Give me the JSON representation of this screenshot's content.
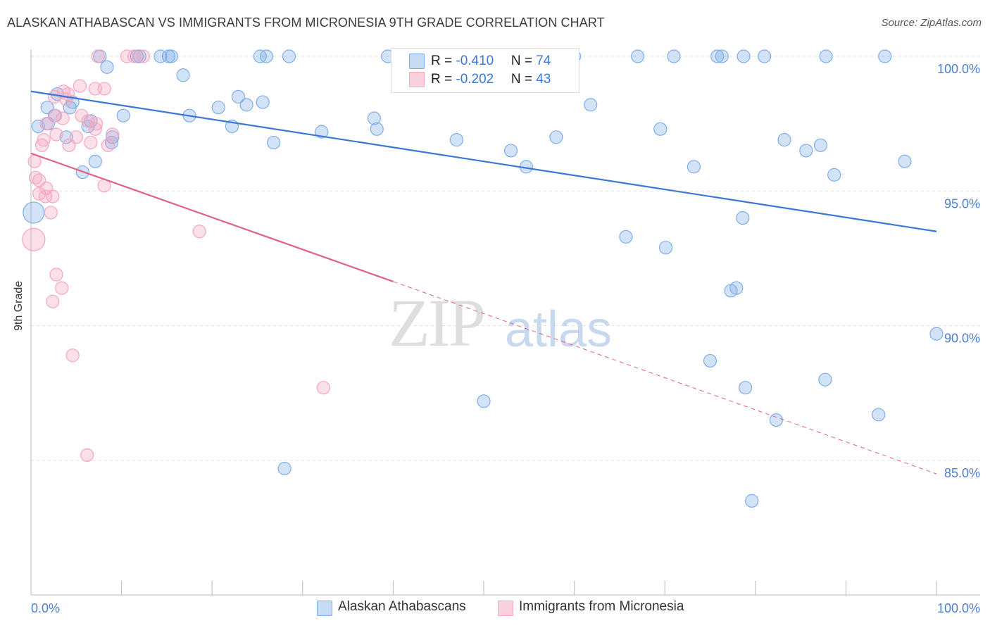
{
  "title": "ALASKAN ATHABASCAN VS IMMIGRANTS FROM MICRONESIA 9TH GRADE CORRELATION CHART",
  "source": "Source: ZipAtlas.com",
  "watermark": {
    "zip": "ZIP",
    "atlas": "atlas"
  },
  "legend_top": [
    {
      "r_label": "R = ",
      "r_value": "-0.410",
      "n_label": "N = ",
      "n_value": "74",
      "color": "#7faee8"
    },
    {
      "r_label": "R = ",
      "r_value": "-0.202",
      "n_label": "N = ",
      "n_value": "43",
      "color": "#f4a6c0"
    }
  ],
  "legend_bottom": [
    {
      "label": "Alaskan Athabascans",
      "color": "#7faee8"
    },
    {
      "label": "Immigrants from Micronesia",
      "color": "#f4a6c0"
    }
  ],
  "chart_data": {
    "type": "scatter",
    "title": "ALASKAN ATHABASCAN VS IMMIGRANTS FROM MICRONESIA 9TH GRADE CORRELATION CHART",
    "xlabel": "",
    "ylabel": "9th Grade",
    "xlim": [
      0,
      100
    ],
    "ylim": [
      80.5,
      101
    ],
    "x_tick_labels": [
      "0.0%",
      "100.0%"
    ],
    "y_ticks": [
      85,
      90,
      95,
      100
    ],
    "y_tick_labels": [
      "85.0%",
      "90.0%",
      "95.0%",
      "100.0%"
    ],
    "grid": "horizontal dashed",
    "legend": "top-center",
    "series": [
      {
        "name": "Alaskan Athabascans",
        "color": "#7faee8",
        "line_color": "#3a78d4",
        "trend": {
          "x": [
            0,
            100
          ],
          "y": [
            98.7,
            93.5
          ]
        },
        "points": [
          [
            1.8,
            98.1
          ],
          [
            0.8,
            97.4
          ],
          [
            2.6,
            97.8
          ],
          [
            1.9,
            97.5
          ],
          [
            2.9,
            98.6
          ],
          [
            4.3,
            98.1
          ],
          [
            4.6,
            98.3
          ],
          [
            6.3,
            97.4
          ],
          [
            6.6,
            97.6
          ],
          [
            3.9,
            97.0
          ],
          [
            9.0,
            97.0
          ],
          [
            8.9,
            96.8
          ],
          [
            8.4,
            99.6
          ],
          [
            7.6,
            100.0
          ],
          [
            11.7,
            100.0
          ],
          [
            12.0,
            100.0
          ],
          [
            14.3,
            100.0
          ],
          [
            15.2,
            100.0
          ],
          [
            15.5,
            100.0
          ],
          [
            25.3,
            100.0
          ],
          [
            26.0,
            100.0
          ],
          [
            28.5,
            100.0
          ],
          [
            39.4,
            100.0
          ],
          [
            41.1,
            100.0
          ],
          [
            60.0,
            100.0
          ],
          [
            67.0,
            100.0
          ],
          [
            71.0,
            100.0
          ],
          [
            75.8,
            100.0
          ],
          [
            76.3,
            100.0
          ],
          [
            78.7,
            100.0
          ],
          [
            81.0,
            100.0
          ],
          [
            87.8,
            100.0
          ],
          [
            94.3,
            100.0
          ],
          [
            10.2,
            97.8
          ],
          [
            16.8,
            99.3
          ],
          [
            17.5,
            97.8
          ],
          [
            20.7,
            98.1
          ],
          [
            22.2,
            97.4
          ],
          [
            22.9,
            98.5
          ],
          [
            23.8,
            98.2
          ],
          [
            25.6,
            98.3
          ],
          [
            26.8,
            96.8
          ],
          [
            32.1,
            97.2
          ],
          [
            37.9,
            97.7
          ],
          [
            38.2,
            97.3
          ],
          [
            53.0,
            96.5
          ],
          [
            58.0,
            97.0
          ],
          [
            61.8,
            98.2
          ],
          [
            69.5,
            97.3
          ],
          [
            73.2,
            95.9
          ],
          [
            83.2,
            96.9
          ],
          [
            85.6,
            96.5
          ],
          [
            87.2,
            96.7
          ],
          [
            88.7,
            95.6
          ],
          [
            96.5,
            96.1
          ],
          [
            0.3,
            94.2
          ],
          [
            65.7,
            93.3
          ],
          [
            70.1,
            92.9
          ],
          [
            78.6,
            94.0
          ],
          [
            77.3,
            91.3
          ],
          [
            77.9,
            91.4
          ],
          [
            100.0,
            89.7
          ],
          [
            75.0,
            88.7
          ],
          [
            78.9,
            87.7
          ],
          [
            87.7,
            88.0
          ],
          [
            50.0,
            87.2
          ],
          [
            82.3,
            86.5
          ],
          [
            93.6,
            86.7
          ],
          [
            28.0,
            84.7
          ],
          [
            79.6,
            83.5
          ],
          [
            5.7,
            95.7
          ],
          [
            7.1,
            96.1
          ],
          [
            47.0,
            96.9
          ],
          [
            54.7,
            95.9
          ]
        ]
      },
      {
        "name": "Immigrants from Micronesia",
        "color": "#f4a6c0",
        "line_color": "#e0608a",
        "trend": {
          "x": [
            0,
            100
          ],
          "y": [
            96.4,
            84.5
          ]
        },
        "points": [
          [
            3.6,
            98.7
          ],
          [
            4.1,
            98.6
          ],
          [
            3.9,
            98.4
          ],
          [
            2.6,
            98.5
          ],
          [
            5.4,
            98.9
          ],
          [
            7.1,
            98.8
          ],
          [
            8.1,
            98.8
          ],
          [
            7.4,
            100.0
          ],
          [
            10.6,
            100.0
          ],
          [
            11.4,
            100.0
          ],
          [
            12.4,
            100.0
          ],
          [
            2.7,
            97.8
          ],
          [
            3.5,
            97.7
          ],
          [
            5.6,
            97.8
          ],
          [
            6.3,
            97.6
          ],
          [
            7.2,
            97.5
          ],
          [
            1.7,
            97.5
          ],
          [
            2.8,
            97.1
          ],
          [
            5.0,
            97.0
          ],
          [
            7.1,
            97.3
          ],
          [
            9.0,
            97.1
          ],
          [
            1.4,
            96.9
          ],
          [
            1.2,
            96.7
          ],
          [
            4.2,
            96.7
          ],
          [
            6.6,
            96.8
          ],
          [
            8.5,
            96.7
          ],
          [
            0.4,
            96.1
          ],
          [
            0.5,
            95.5
          ],
          [
            0.9,
            95.4
          ],
          [
            1.7,
            95.1
          ],
          [
            8.1,
            95.2
          ],
          [
            0.9,
            94.9
          ],
          [
            1.6,
            94.8
          ],
          [
            2.4,
            94.8
          ],
          [
            2.2,
            94.2
          ],
          [
            18.6,
            93.5
          ],
          [
            0.3,
            93.2
          ],
          [
            2.8,
            91.9
          ],
          [
            3.4,
            91.4
          ],
          [
            2.4,
            90.9
          ],
          [
            4.6,
            88.9
          ],
          [
            32.3,
            87.7
          ],
          [
            6.2,
            85.2
          ]
        ]
      }
    ]
  }
}
